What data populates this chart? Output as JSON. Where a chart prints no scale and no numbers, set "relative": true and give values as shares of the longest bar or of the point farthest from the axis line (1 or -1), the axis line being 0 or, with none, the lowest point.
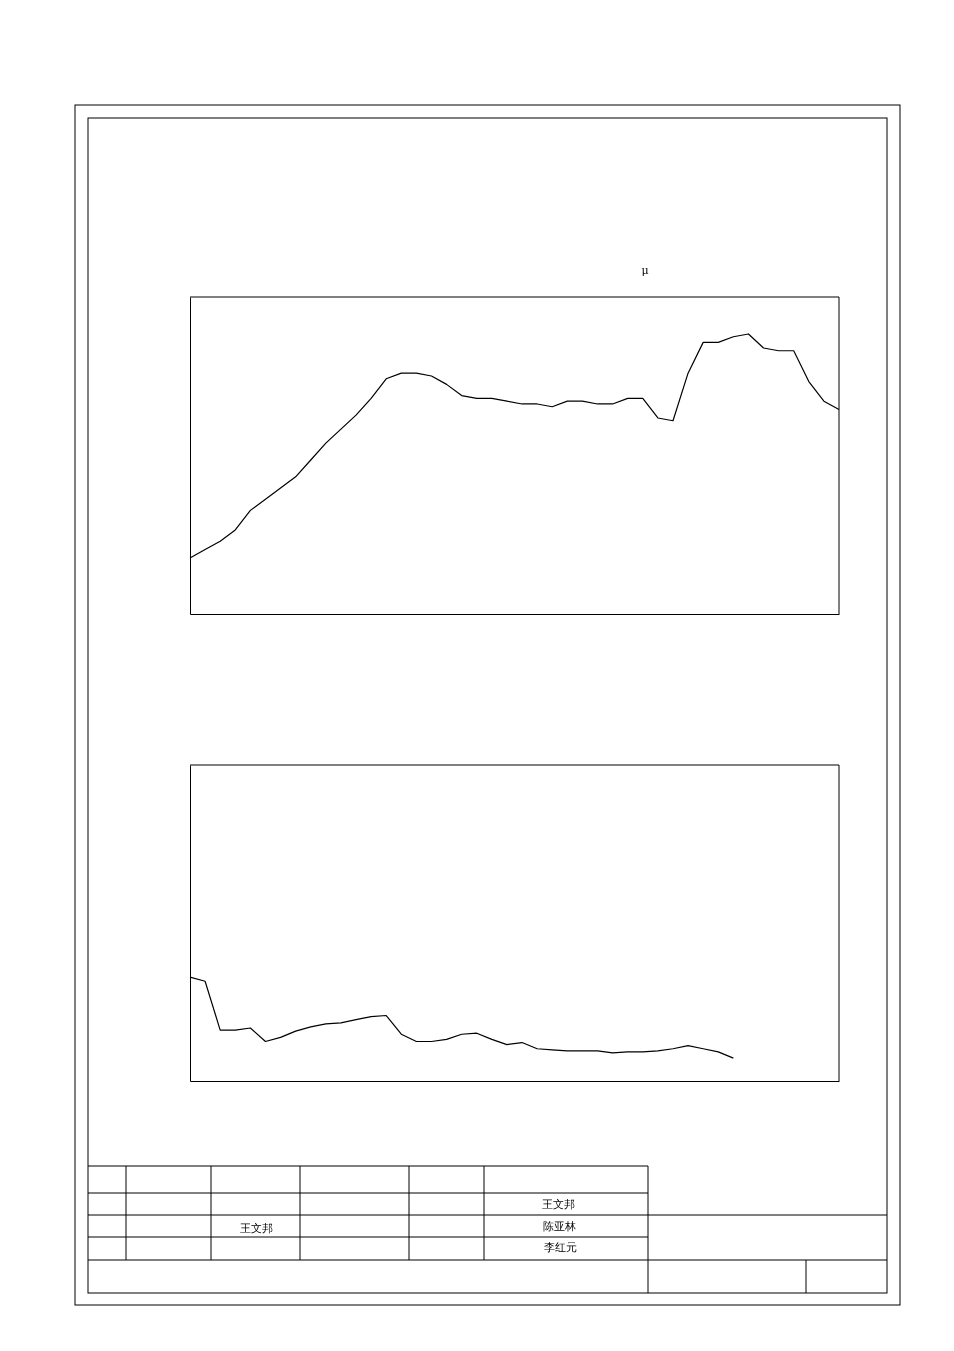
{
  "chart_data": [
    {
      "type": "line",
      "relative": true,
      "categories": [
        null,
        null,
        null,
        null,
        null,
        null,
        null,
        null,
        null,
        null,
        null,
        null,
        null,
        null,
        null,
        null,
        null,
        null,
        null,
        null,
        null,
        null,
        null,
        null,
        null,
        null,
        null,
        null,
        null,
        null,
        null,
        null,
        null,
        null,
        null,
        null,
        null,
        null,
        null,
        null,
        null,
        null,
        null,
        null
      ],
      "series": [
        {
          "color": "#000000",
          "values": [
            0.2,
            0.23,
            0.26,
            0.3,
            0.37,
            0.41,
            0.45,
            0.49,
            0.55,
            0.61,
            0.66,
            0.71,
            0.77,
            0.84,
            0.86,
            0.86,
            0.85,
            0.82,
            0.78,
            0.77,
            0.77,
            0.76,
            0.75,
            0.75,
            0.74,
            0.76,
            0.76,
            0.75,
            0.75,
            0.77,
            0.77,
            0.7,
            0.69,
            0.86,
            0.97,
            0.97,
            0.99,
            1,
            0.95,
            0.94,
            0.94,
            0.83,
            0.76,
            0.73
          ]
        }
      ],
      "annotations": [
        "μ"
      ]
    },
    {
      "type": "line",
      "relative": true,
      "categories": [
        null,
        null,
        null,
        null,
        null,
        null,
        null,
        null,
        null,
        null,
        null,
        null,
        null,
        null,
        null,
        null,
        null,
        null,
        null,
        null,
        null,
        null,
        null,
        null,
        null,
        null,
        null,
        null,
        null,
        null,
        null,
        null,
        null,
        null,
        null,
        null,
        null,
        null,
        null,
        null,
        null,
        null,
        null,
        null
      ],
      "series": [
        {
          "color": "#000000",
          "values": [
            1,
            0.96,
            0.49,
            0.49,
            0.51,
            0.38,
            0.42,
            0.48,
            0.52,
            0.55,
            0.56,
            0.59,
            0.62,
            0.63,
            0.45,
            0.38,
            0.38,
            0.4,
            0.45,
            0.46,
            0.4,
            0.35,
            0.37,
            0.31,
            0.3,
            0.29,
            0.29,
            0.29,
            0.27,
            0.28,
            0.28,
            0.29,
            0.31,
            0.34,
            0.31,
            0.28,
            0.22,
            null,
            null,
            null,
            null,
            null,
            null,
            null
          ]
        }
      ],
      "annotations": [
        "王文邦",
        "王文邦",
        "陈亚林",
        "李红元"
      ]
    }
  ]
}
